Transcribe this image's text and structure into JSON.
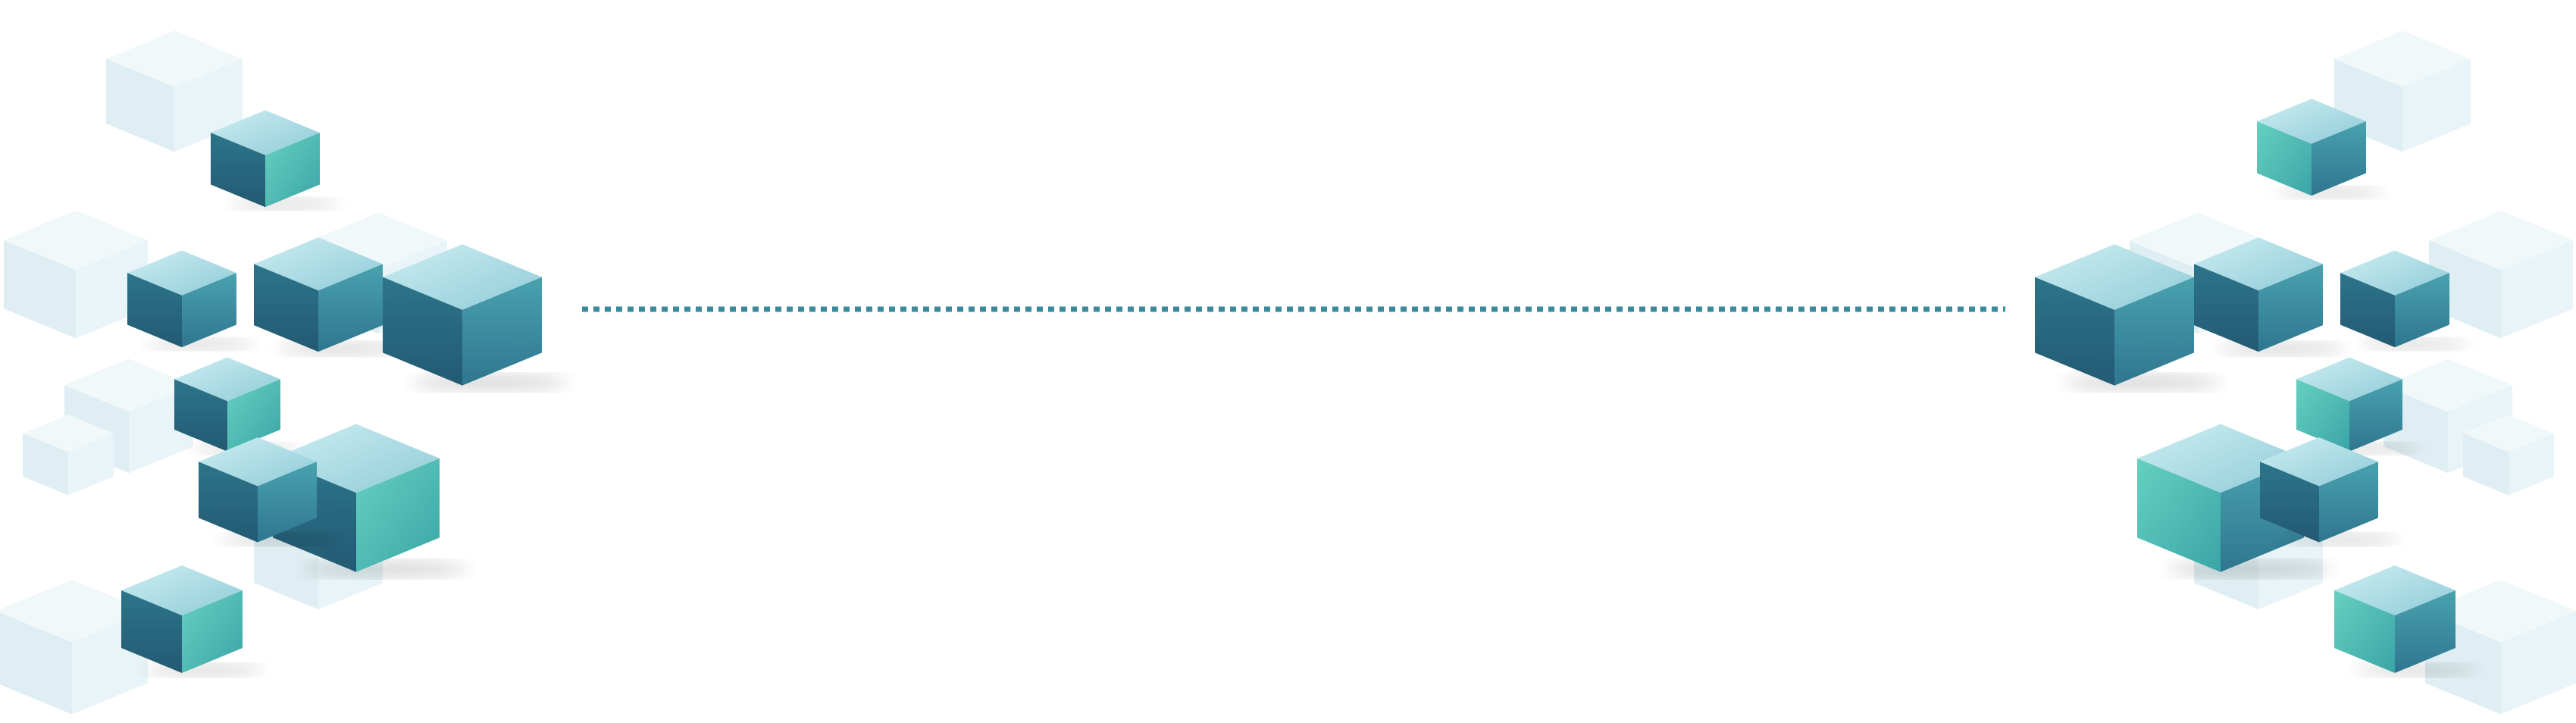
{
  "colors": {
    "background": "#ffffff",
    "connector_dash": "#3a8a9c",
    "cube_top": "#aadbe6",
    "cube_left": "#2a6d86",
    "cube_right": "#3a8aa0",
    "cube_accent": "#55c3b8",
    "cube_dark": "#1f4f6b",
    "ghost_cube": "#e6f2f5"
  },
  "elements": {
    "left_cluster": "cube-cluster",
    "right_cluster": "cube-cluster",
    "connector": "dotted-line"
  }
}
